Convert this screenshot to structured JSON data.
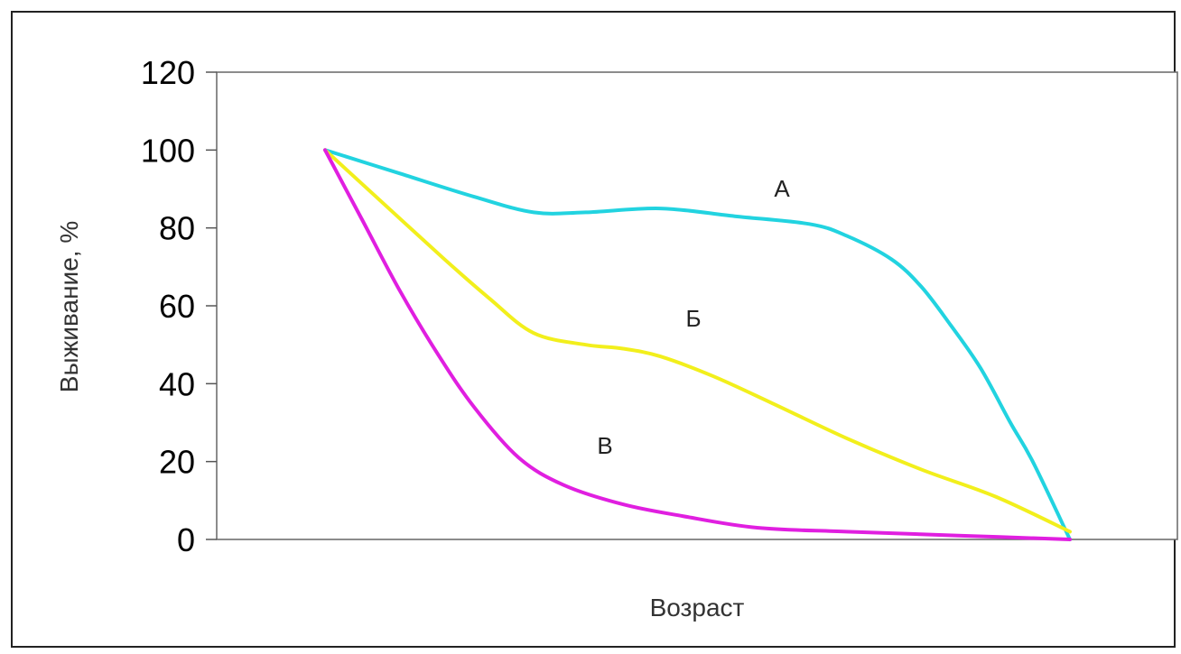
{
  "chart_data": {
    "type": "line",
    "title": "",
    "xlabel": "Возраст",
    "ylabel": "Выживание, %",
    "ylim": [
      0,
      120
    ],
    "yticks": [
      "0",
      "20",
      "40",
      "60",
      "80",
      "100",
      "120"
    ],
    "xlim": [
      0,
      10
    ],
    "grid": false,
    "legend": "none",
    "series": [
      {
        "name": "А",
        "color": "#22d3e0",
        "x": [
          0,
          1,
          2,
          2.8,
          3.5,
          4.5,
          5.5,
          6.5,
          7.0,
          7.6,
          8.0,
          8.4,
          8.8,
          9.2,
          9.5,
          10.0
        ],
        "y": [
          100,
          94,
          88,
          84,
          84,
          85,
          83,
          81,
          78,
          72,
          65,
          55,
          44,
          30,
          20,
          0
        ]
      },
      {
        "name": "Б",
        "color": "#f2ef1c",
        "x": [
          0,
          0.8,
          1.6,
          2.2,
          2.8,
          3.5,
          4.0,
          4.5,
          5.2,
          6.0,
          7.0,
          8.0,
          9.0,
          10.0
        ],
        "y": [
          100,
          86,
          72,
          62,
          53,
          50,
          49,
          47,
          42,
          35,
          26,
          18,
          11,
          2
        ]
      },
      {
        "name": "В",
        "color": "#e01fe0",
        "x": [
          0,
          0.5,
          1.0,
          1.5,
          2.0,
          2.6,
          3.2,
          4.0,
          4.8,
          5.8,
          7.0,
          8.5,
          10.0
        ],
        "y": [
          100,
          82,
          64,
          48,
          34,
          21,
          14,
          9,
          6,
          3,
          2,
          1,
          0
        ]
      }
    ],
    "annotations": [
      "А",
      "Б",
      "В"
    ]
  }
}
